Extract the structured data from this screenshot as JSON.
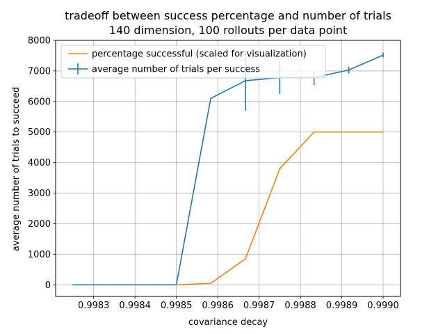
{
  "chart_data": {
    "type": "line",
    "title": "tradeoff between success percentage and number of trials",
    "subtitle": "140 dimension, 100 rollouts per data point",
    "xlabel": "covariance decay",
    "ylabel": "average number of trials to succeed",
    "xlim": [
      0.998208,
      0.999042
    ],
    "ylim": [
      -380,
      8000
    ],
    "grid": true,
    "legend_position": "upper-left",
    "x_ticks": [
      {
        "value": 0.9983,
        "label": "0.9983"
      },
      {
        "value": 0.9984,
        "label": "0.9984"
      },
      {
        "value": 0.9985,
        "label": "0.9985"
      },
      {
        "value": 0.9986,
        "label": "0.9986"
      },
      {
        "value": 0.9987,
        "label": "0.9987"
      },
      {
        "value": 0.9988,
        "label": "0.9988"
      },
      {
        "value": 0.9989,
        "label": "0.9989"
      },
      {
        "value": 0.999,
        "label": "0.9990"
      }
    ],
    "y_ticks": [
      {
        "value": 0,
        "label": "0"
      },
      {
        "value": 1000,
        "label": "1000"
      },
      {
        "value": 2000,
        "label": "2000"
      },
      {
        "value": 3000,
        "label": "3000"
      },
      {
        "value": 4000,
        "label": "4000"
      },
      {
        "value": 5000,
        "label": "5000"
      },
      {
        "value": 6000,
        "label": "6000"
      },
      {
        "value": 7000,
        "label": "7000"
      },
      {
        "value": 8000,
        "label": "8000"
      }
    ],
    "series": [
      {
        "name": "average number of trials per success",
        "color": "#1f77b4",
        "errorbars": true,
        "points": [
          {
            "x": 0.99825,
            "y": 0,
            "err": 0
          },
          {
            "x": 0.998333,
            "y": 0,
            "err": 0
          },
          {
            "x": 0.998417,
            "y": 0,
            "err": 0
          },
          {
            "x": 0.9985,
            "y": 0,
            "err": 0
          },
          {
            "x": 0.998583,
            "y": 6100,
            "err": 0
          },
          {
            "x": 0.998667,
            "y": 6680,
            "err": 980
          },
          {
            "x": 0.99875,
            "y": 6780,
            "err": 530
          },
          {
            "x": 0.998833,
            "y": 6780,
            "err": 240
          },
          {
            "x": 0.998917,
            "y": 7030,
            "err": 110
          },
          {
            "x": 0.999,
            "y": 7520,
            "err": 80
          }
        ]
      },
      {
        "name": "percentage successful (scaled for visualization)",
        "color": "#ff7f0e",
        "errorbars": false,
        "points": [
          {
            "x": 0.9985,
            "y": 0
          },
          {
            "x": 0.998583,
            "y": 50
          },
          {
            "x": 0.998667,
            "y": 850
          },
          {
            "x": 0.99875,
            "y": 3800
          },
          {
            "x": 0.998833,
            "y": 5000
          },
          {
            "x": 0.998917,
            "y": 5000
          },
          {
            "x": 0.999,
            "y": 5000
          }
        ]
      }
    ],
    "legend_order": [
      1,
      0
    ]
  }
}
